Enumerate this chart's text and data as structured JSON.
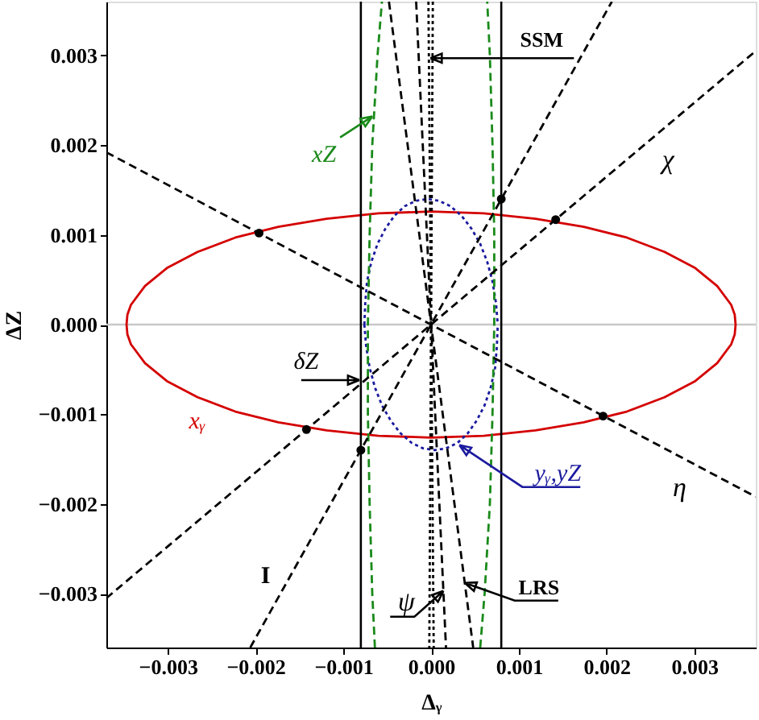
{
  "chart_data": {
    "type": "line",
    "xlabel": "Δᵧ",
    "ylabel": "ΔZ",
    "xlim": [
      -0.0037,
      0.0037
    ],
    "ylim": [
      -0.0036,
      0.0036
    ],
    "xticks": [
      {
        "value": -0.003,
        "label": "−0.003"
      },
      {
        "value": -0.002,
        "label": "−0.002"
      },
      {
        "value": -0.001,
        "label": "−0.001"
      },
      {
        "value": 0,
        "label": "0.000"
      },
      0.001,
      0.002,
      0.003
    ],
    "yticks": [
      {
        "value": -0.003,
        "label": "−0.003"
      },
      {
        "value": -0.002,
        "label": "−0.002"
      },
      {
        "value": -0.001,
        "label": "−0.001"
      },
      {
        "value": 0,
        "label": "0.000"
      },
      0.001,
      0.002,
      0.003
    ],
    "series": [
      {
        "name": "xᵧ",
        "color": "#d40000",
        "line_style": "solid",
        "x": [
          -0.00347,
          -0.00346,
          -0.00342,
          -0.00326,
          -0.00301,
          -0.00266,
          -0.00223,
          -0.00174,
          -0.00119,
          -0.0006,
          0,
          0.0006,
          0.00119,
          0.00174,
          0.00223,
          0.00266,
          0.00301,
          0.00326,
          0.00342,
          0.00346,
          0.00347,
          null,
          -0.00347,
          -0.00346,
          -0.00342,
          -0.00326,
          -0.00301,
          -0.00266,
          -0.00223,
          -0.00174,
          -0.00119,
          -0.0006,
          0,
          0.0006,
          0.00119,
          0.00174,
          0.00223,
          0.00266,
          0.00301,
          0.00326,
          0.00342,
          0.00346,
          0.00347
        ],
        "values": [
          0,
          0.00011,
          0.00022,
          0.00043,
          0.00063,
          0.00081,
          0.00097,
          0.00109,
          0.00118,
          0.00124,
          0.00126,
          0.00124,
          0.00118,
          0.00109,
          0.00097,
          0.00081,
          0.00063,
          0.00043,
          0.00022,
          0.00011,
          0,
          null,
          0,
          -0.00011,
          -0.00022,
          -0.00043,
          -0.00063,
          -0.00081,
          -0.00097,
          -0.00109,
          -0.00118,
          -0.00124,
          -0.00126,
          -0.00124,
          -0.00118,
          -0.00109,
          -0.00097,
          -0.00081,
          -0.00063,
          -0.00043,
          -0.00022,
          -0.00011,
          0
        ]
      },
      {
        "name": "yᵧ,yZ",
        "color": "#1a1a9e",
        "line_style": "dotted",
        "x": [
          -0.00076,
          -0.00075,
          -0.00073,
          -0.00068,
          -0.00061,
          -0.00052,
          -0.00042,
          -0.0003,
          -0.00017,
          -4e-05,
          9e-05,
          0.00022,
          0.00035,
          0.00046,
          0.00056,
          0.00064,
          0.0007,
          0.00074,
          0.00076,
          null,
          -0.00076,
          -0.00074,
          -0.0007,
          -0.00064,
          -0.00056,
          -0.00046,
          -0.00035,
          -0.00022,
          -9e-05,
          4e-05,
          0.00017,
          0.0003,
          0.00042,
          0.00052,
          0.00061,
          0.00068,
          0.00073,
          0.00075,
          0.00076
        ],
        "values": [
          0,
          0.00024,
          0.00048,
          0.0007,
          0.0009,
          0.00107,
          0.00121,
          0.00132,
          0.00138,
          0.0014,
          0.00138,
          0.00132,
          0.00121,
          0.00107,
          0.0009,
          0.0007,
          0.00048,
          0.00024,
          0,
          null,
          0,
          -0.00024,
          -0.00048,
          -0.0007,
          -0.0009,
          -0.00107,
          -0.00121,
          -0.00132,
          -0.00138,
          -0.0014,
          -0.00138,
          -0.00132,
          -0.00121,
          -0.00107,
          -0.0009,
          -0.0007,
          -0.00048,
          -0.00024,
          0
        ]
      },
      {
        "name": "xZ",
        "color": "#1a8a1a",
        "line_style": "dashed",
        "x": [
          -0.00064,
          -0.00067,
          -0.0007,
          -0.00072,
          -0.00072,
          -0.0007,
          -0.00067,
          -0.00061,
          -0.00056
        ],
        "values": [
          -0.0036,
          -0.003,
          -0.002,
          -0.001,
          0,
          0.001,
          0.002,
          0.003,
          0.0036
        ]
      },
      {
        "color": "#1a8a1a",
        "line_style": "dashed",
        "x": [
          0.00056,
          0.00061,
          0.00067,
          0.0007,
          0.00072,
          0.00072,
          0.0007,
          0.00067,
          0.00064
        ],
        "values": [
          -0.0036,
          -0.003,
          -0.002,
          -0.001,
          0,
          0.001,
          0.002,
          0.003,
          0.0036
        ]
      },
      {
        "name": "η",
        "color": "#000000",
        "line_style": "dashed",
        "x": [
          -0.0037,
          0.0037
        ],
        "values": [
          0.00192,
          -0.00192
        ]
      },
      {
        "name": "χ",
        "color": "#000000",
        "line_style": "dashed",
        "x": [
          -0.0037,
          0.0037
        ],
        "values": [
          -0.00305,
          0.00305
        ]
      },
      {
        "name": "I",
        "color": "#000000",
        "line_style": "dashed",
        "x": [
          -0.00206,
          0.00206
        ],
        "values": [
          -0.0036,
          0.0036
        ]
      },
      {
        "name": "LRS",
        "color": "#000000",
        "line_style": "dashed",
        "x": [
          -0.00048,
          0.00048
        ],
        "values": [
          0.0036,
          -0.0036
        ]
      },
      {
        "name": "ψ",
        "color": "#000000",
        "line_style": "dashed",
        "x": [
          -0.00017,
          0.00017
        ],
        "values": [
          0.0036,
          -0.0036
        ]
      },
      {
        "name": "SSM",
        "color": "#000000",
        "line_style": "dotted",
        "x": [
          -3e-05,
          3e-05
        ],
        "values": [
          0.0036,
          -0.0036
        ]
      },
      {
        "color": "#000000",
        "line_style": "dotted",
        "x": [
          2e-05,
          -2e-05
        ],
        "values": [
          0.0036,
          -0.0036
        ]
      },
      {
        "type": "scatter",
        "color": "#000000",
        "marker": "circle",
        "x": [
          -0.00196,
          0.00142,
          0.0008,
          -0.00142,
          -0.0008,
          0.00196
        ],
        "values": [
          0.00102,
          0.00117,
          0.0014,
          -0.00117,
          -0.0014,
          -0.00102
        ]
      }
    ],
    "ref_lines": [
      {
        "axis": "y",
        "value": 0,
        "color": "#c8c8c8",
        "line_style": "solid"
      },
      {
        "axis": "x",
        "value": -0.0008,
        "label": "δZ",
        "color": "#000000",
        "line_style": "solid"
      },
      {
        "axis": "x",
        "value": 0.0008,
        "color": "#000000",
        "line_style": "solid"
      }
    ]
  }
}
